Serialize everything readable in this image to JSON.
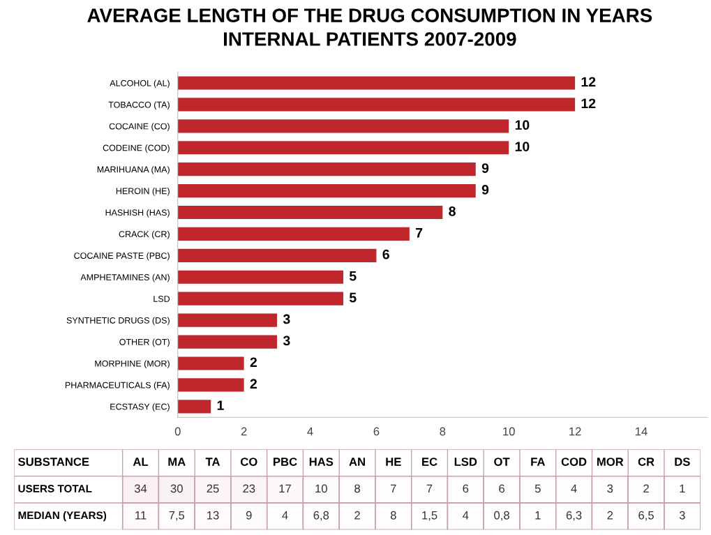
{
  "chart_data": [
    {
      "type": "bar",
      "orientation": "horizontal",
      "title": "AVERAGE LENGTH OF THE DRUG CONSUMPTION IN YEARS\nINTERNAL PATIENTS 2007-2009",
      "categories": [
        "ALCOHOL (AL)",
        "TOBACCO (TA)",
        "COCAINE (CO)",
        "CODEINE (COD)",
        "MARIHUANA (MA)",
        "HEROIN (HE)",
        "HASHISH (HAS)",
        "CRACK (CR)",
        "COCAINE PASTE (PBC)",
        "AMPHETAMINES (AN)",
        "LSD",
        "SYNTHETIC DRUGS (DS)",
        "OTHER (OT)",
        "MORPHINE (MOR)",
        "PHARMACEUTICALS (FA)",
        "ECSTASY (EC)"
      ],
      "values": [
        12,
        12,
        10,
        10,
        9,
        9,
        8,
        7,
        6,
        5,
        5,
        3,
        3,
        2,
        2,
        1
      ],
      "color": "#c0272d",
      "data_labels": true,
      "xlim": [
        0,
        16
      ],
      "xticks": [
        0,
        2,
        4,
        6,
        8,
        10,
        12,
        14
      ],
      "grid": false,
      "legend": false
    },
    {
      "type": "heatmap",
      "annotations": [
        "SUBSTANCE"
      ],
      "categories": [
        "AL",
        "MA",
        "TA",
        "CO",
        "PBC",
        "HAS",
        "AN",
        "HE",
        "EC",
        "LSD",
        "OT",
        "FA",
        "COD",
        "MOR",
        "CR",
        "DS"
      ],
      "y_categories": [
        "USERS TOTAL",
        "MEDIAN (YEARS)"
      ],
      "cells": [
        [
          34,
          30,
          25,
          23,
          17,
          10,
          8,
          7,
          7,
          6,
          6,
          5,
          4,
          3,
          2,
          1
        ],
        [
          11,
          7.5,
          13,
          9,
          4,
          6.8,
          2,
          8,
          1.5,
          4,
          0.8,
          1,
          6.3,
          2,
          6.5,
          3
        ]
      ],
      "cell_labels": [
        [
          "34",
          "30",
          "25",
          "23",
          "17",
          "10",
          "8",
          "7",
          "7",
          "6",
          "6",
          "5",
          "4",
          "3",
          "2",
          "1"
        ],
        [
          "11",
          "7,5",
          "13",
          "9",
          "4",
          "6,8",
          "2",
          "8",
          "1,5",
          "4",
          "0,8",
          "1",
          "6,3",
          "2",
          "6,5",
          "3"
        ]
      ]
    }
  ]
}
